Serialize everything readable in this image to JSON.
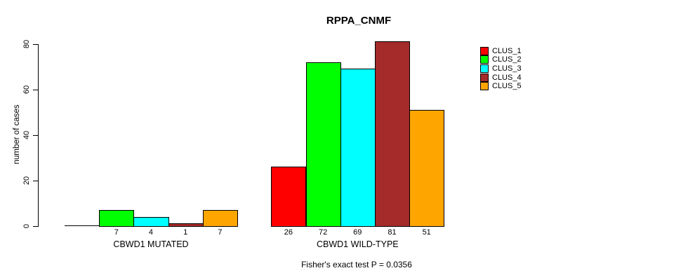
{
  "chart_data": {
    "type": "bar",
    "title": "RPPA_CNMF",
    "ylabel": "number of cases",
    "xlabel": "",
    "ylim": [
      0,
      80
    ],
    "yticks": [
      0,
      20,
      40,
      60,
      80
    ],
    "grid": false,
    "legend_position": "right",
    "categories": [
      "CBWD1 MUTATED",
      "CBWD1 WILD-TYPE"
    ],
    "series": [
      {
        "name": "CLUS_1",
        "color": "#FF0000",
        "values": [
          0,
          26
        ]
      },
      {
        "name": "CLUS_2",
        "color": "#00FF00",
        "values": [
          7,
          72
        ]
      },
      {
        "name": "CLUS_3",
        "color": "#00FFFF",
        "values": [
          4,
          69
        ]
      },
      {
        "name": "CLUS_4",
        "color": "#A52A2A",
        "values": [
          1,
          81
        ]
      },
      {
        "name": "CLUS_5",
        "color": "#FFA500",
        "values": [
          7,
          51
        ]
      }
    ],
    "bar_value_labels": [
      [
        "",
        "7",
        "4",
        "1",
        "7"
      ],
      [
        "26",
        "72",
        "69",
        "81",
        "51"
      ]
    ],
    "footnote": "Fisher's exact test P = 0.0356"
  }
}
